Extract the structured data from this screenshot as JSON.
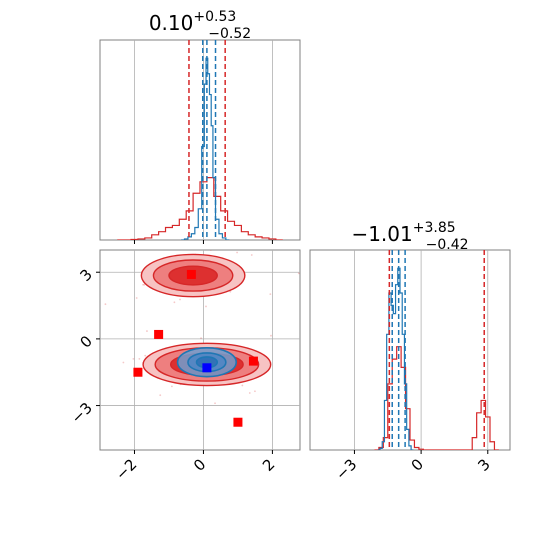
{
  "chart_data": {
    "type": "corner",
    "colors": {
      "samples_a": "#d62728",
      "samples_b": "#1f77b4",
      "scatter_points": "#ff0000",
      "scatter_point_highlight": "#0000ff",
      "grid": "#b0b0b0",
      "axes": "#808080"
    },
    "grid": true,
    "parameters": [
      {
        "id": "p0",
        "title": {
          "main": "0.10",
          "upper": "+0.53",
          "lower": "−0.52"
        },
        "median": 0.1,
        "quantiles_a": [
          -0.42,
          0.63
        ],
        "quantiles_b": [
          -0.02,
          0.35
        ],
        "range": [
          -3.0,
          2.8
        ]
      },
      {
        "id": "p1",
        "title": {
          "main": "−1.01",
          "upper": "+3.85",
          "lower": "−0.42"
        },
        "median": -1.01,
        "quantiles_a": [
          -1.43,
          2.84
        ],
        "quantiles_b": [
          -1.3,
          -0.72
        ],
        "range": [
          -5.0,
          4.0
        ]
      }
    ],
    "hist_p0_a": {
      "bin_centers": [
        -2.4,
        -2.2,
        -2.0,
        -1.8,
        -1.6,
        -1.4,
        -1.2,
        -1.0,
        -0.8,
        -0.6,
        -0.4,
        -0.2,
        0.0,
        0.2,
        0.4,
        0.6,
        0.8,
        1.0,
        1.2,
        1.4,
        1.6,
        1.8,
        2.0,
        2.2
      ],
      "counts": [
        0,
        0,
        0.5,
        1,
        2,
        5,
        8,
        12,
        14,
        20,
        28,
        45,
        56,
        60,
        42,
        28,
        18,
        14,
        8,
        5,
        3,
        2,
        1,
        0
      ]
    },
    "hist_p0_b": {
      "bin_centers": [
        -0.6,
        -0.5,
        -0.4,
        -0.3,
        -0.2,
        -0.1,
        0.0,
        0.05,
        0.1,
        0.15,
        0.2,
        0.25,
        0.3,
        0.4,
        0.5,
        0.6,
        0.7
      ],
      "counts": [
        0,
        1,
        3,
        6,
        12,
        30,
        90,
        150,
        175,
        160,
        140,
        110,
        60,
        20,
        6,
        2,
        0
      ]
    },
    "hist_p1_a": {
      "bin_centers": [
        -2.0,
        -1.8,
        -1.6,
        -1.4,
        -1.2,
        -1.0,
        -0.8,
        -0.6,
        -0.4,
        -0.2,
        0.0,
        0.2,
        2.2,
        2.4,
        2.6,
        2.8,
        3.0,
        3.2,
        3.4
      ],
      "counts": [
        0,
        3,
        15,
        80,
        110,
        125,
        100,
        50,
        12,
        3,
        1,
        0,
        0,
        15,
        45,
        60,
        40,
        10,
        0
      ]
    },
    "hist_p1_b": {
      "bin_centers": [
        -1.9,
        -1.8,
        -1.7,
        -1.6,
        -1.5,
        -1.4,
        -1.3,
        -1.2,
        -1.1,
        -1.0,
        -0.9,
        -0.8,
        -0.7,
        -0.6,
        -0.5,
        -0.4
      ],
      "counts": [
        0,
        2,
        10,
        60,
        140,
        190,
        175,
        165,
        200,
        220,
        190,
        140,
        80,
        25,
        5,
        0
      ]
    },
    "contours_a": [
      {
        "cx": -0.3,
        "cy": 2.85,
        "levels": [
          [
            1.5,
            0.95
          ],
          [
            1.15,
            0.7
          ],
          [
            0.7,
            0.42
          ]
        ]
      },
      {
        "cx": 0.1,
        "cy": -1.15,
        "levels": [
          [
            1.85,
            0.95
          ],
          [
            1.5,
            0.75
          ],
          [
            1.05,
            0.5
          ]
        ]
      }
    ],
    "contours_b": [
      {
        "cx": 0.1,
        "cy": -1.05,
        "levels": [
          [
            0.85,
            0.65
          ],
          [
            0.55,
            0.42
          ],
          [
            0.3,
            0.24
          ]
        ]
      }
    ],
    "scatter_points": [
      {
        "x": -0.35,
        "y": 2.9
      },
      {
        "x": -1.3,
        "y": 0.2
      },
      {
        "x": -1.9,
        "y": -1.5
      },
      {
        "x": 1.45,
        "y": -1.0
      },
      {
        "x": 1.0,
        "y": -3.75
      }
    ],
    "scatter_point_highlight": {
      "x": 0.1,
      "y": -1.3
    },
    "ticks_p0": [
      {
        "value": -2,
        "label": "−2"
      },
      {
        "value": 0,
        "label": "0"
      },
      {
        "value": 2,
        "label": "2"
      }
    ],
    "ticks_p1": [
      {
        "value": -3,
        "label": "−3"
      },
      {
        "value": 0,
        "label": "0"
      },
      {
        "value": 3,
        "label": "3"
      }
    ]
  }
}
